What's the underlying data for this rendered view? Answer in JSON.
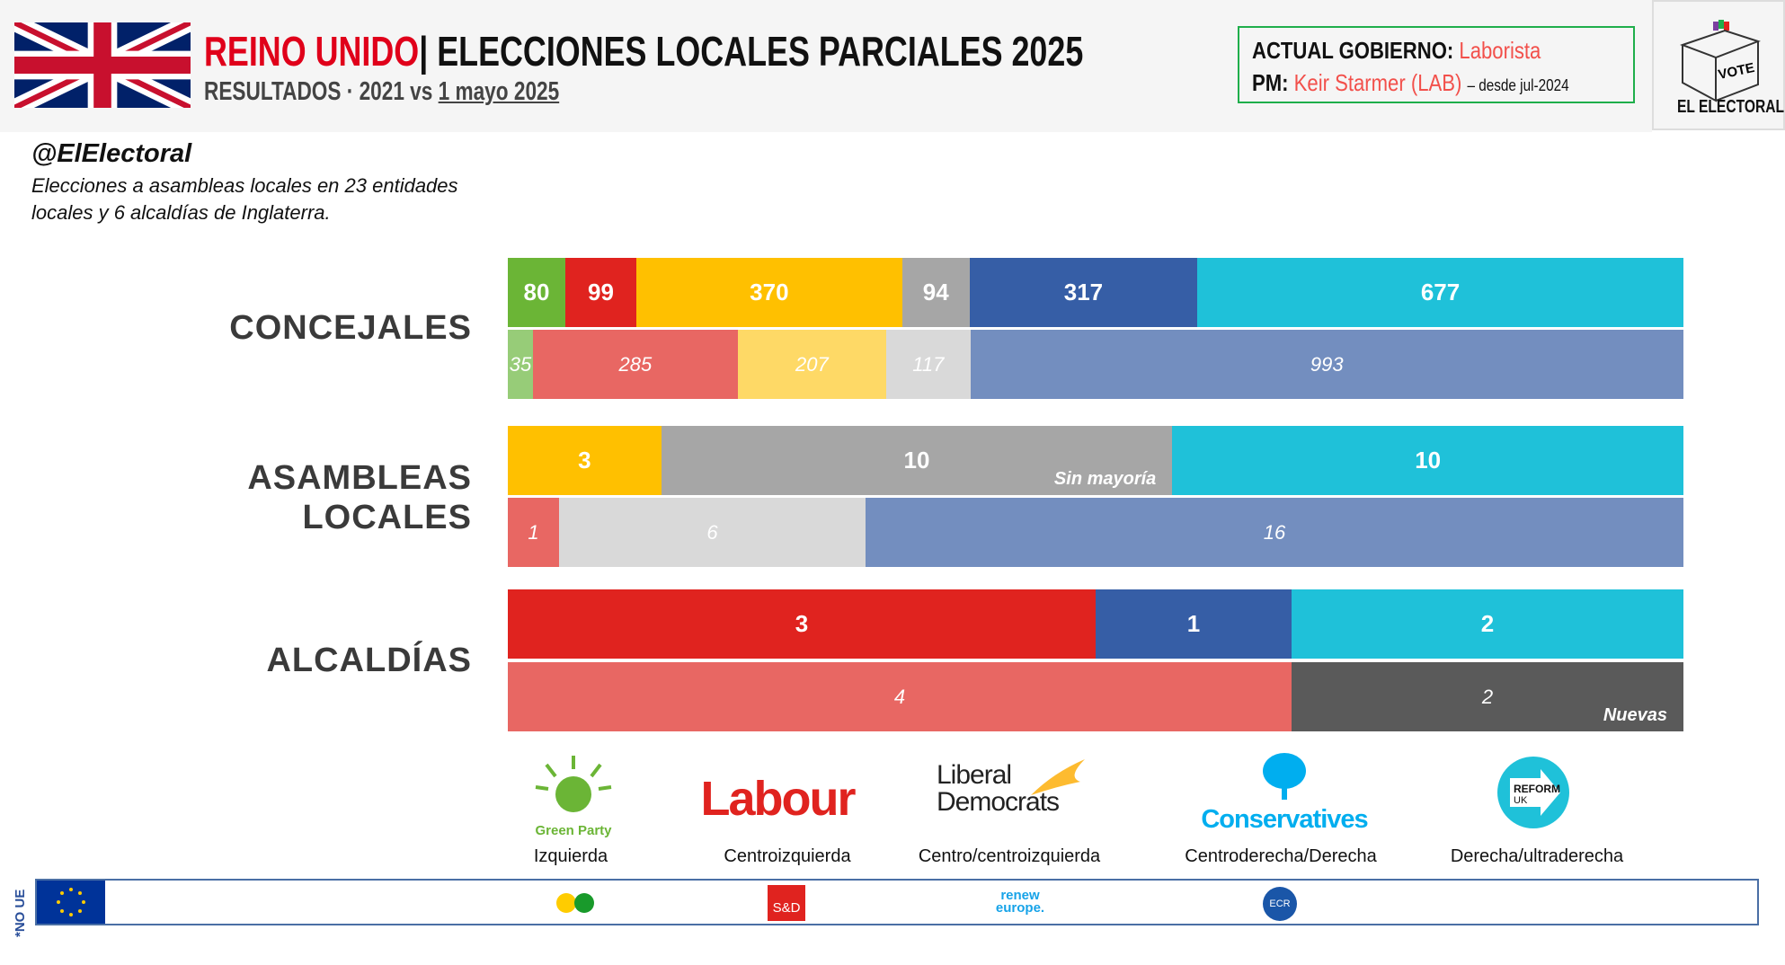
{
  "header": {
    "country": "REINO UNIDO",
    "title": "| ELECCIONES LOCALES PARCIALES 2025",
    "subtitle_prefix": "RESULTADOS · 2021 vs ",
    "subtitle_date": "1 mayo 2025"
  },
  "government": {
    "label": "ACTUAL GOBIERNO:",
    "party": "Laborista",
    "pm_label": "PM:",
    "pm_name": "Keir Starmer (LAB)",
    "pm_since": "– desde jul-2024"
  },
  "logo": {
    "vote": "VOTE",
    "brand": "EL ELECTORAL"
  },
  "handle": "@ElElectoral",
  "description": "Elecciones a asambleas locales en 23 entidades locales y 6 alcaldías de Inglaterra.",
  "chart_data": {
    "type": "bar",
    "orientation": "horizontal-stacked",
    "colors": {
      "green": "#6bb536",
      "labour": "#e0231f",
      "libdem": "#ffc000",
      "other": "#a6a6a6",
      "conservative": "#365ea6",
      "reform": "#1fc1d9",
      "green_2021": "#97cc78",
      "labour_2021": "#e86763",
      "libdem_2021": "#fed966",
      "other_2021": "#d9d9d9",
      "conservative_2021": "#738ebf",
      "nuevas": "#5a5a5a"
    },
    "groups": [
      {
        "label": "CONCEJALES",
        "rows": [
          {
            "year": "2025",
            "segments": [
              {
                "party": "green",
                "value": 80
              },
              {
                "party": "labour",
                "value": 99
              },
              {
                "party": "libdem",
                "value": 370
              },
              {
                "party": "other",
                "value": 94
              },
              {
                "party": "conservative",
                "value": 317
              },
              {
                "party": "reform",
                "value": 677
              }
            ]
          },
          {
            "year": "2021",
            "segments": [
              {
                "party": "green_2021",
                "value": 35
              },
              {
                "party": "labour_2021",
                "value": 285
              },
              {
                "party": "libdem_2021",
                "value": 207
              },
              {
                "party": "other_2021",
                "value": 117
              },
              {
                "party": "conservative_2021",
                "value": 993
              }
            ]
          }
        ]
      },
      {
        "label": "ASAMBLEAS\nLOCALES",
        "rows": [
          {
            "year": "2025",
            "segments": [
              {
                "party": "libdem",
                "value": 3
              },
              {
                "party": "other",
                "value": 10,
                "note": "Sin mayoría"
              },
              {
                "party": "reform",
                "value": 10
              }
            ]
          },
          {
            "year": "2021",
            "segments": [
              {
                "party": "labour_2021",
                "value": 1
              },
              {
                "party": "other_2021",
                "value": 6
              },
              {
                "party": "conservative_2021",
                "value": 16
              }
            ]
          }
        ]
      },
      {
        "label": "ALCALDÍAS",
        "rows": [
          {
            "year": "2025",
            "segments": [
              {
                "party": "labour",
                "value": 3
              },
              {
                "party": "conservative",
                "value": 1
              },
              {
                "party": "reform",
                "value": 2
              }
            ]
          },
          {
            "year": "2021",
            "segments": [
              {
                "party": "labour_2021",
                "value": 4
              },
              {
                "party": "nuevas",
                "value": 2,
                "note": "Nuevas"
              }
            ]
          }
        ]
      }
    ]
  },
  "parties": [
    {
      "name": "Green Party",
      "ideology": "Izquierda"
    },
    {
      "name": "Labour",
      "ideology": "Centroizquierda"
    },
    {
      "name": "Liberal Democrats",
      "ideology": "Centro/centroizquierda"
    },
    {
      "name": "Conservatives",
      "ideology": "Centroderecha/Derecha"
    },
    {
      "name": "REFORM UK",
      "ideology": "Derecha/ultraderecha"
    }
  ],
  "eu": {
    "note": "*NO UE",
    "groups": [
      "S&D",
      "renew europe.",
      "ECR"
    ]
  }
}
